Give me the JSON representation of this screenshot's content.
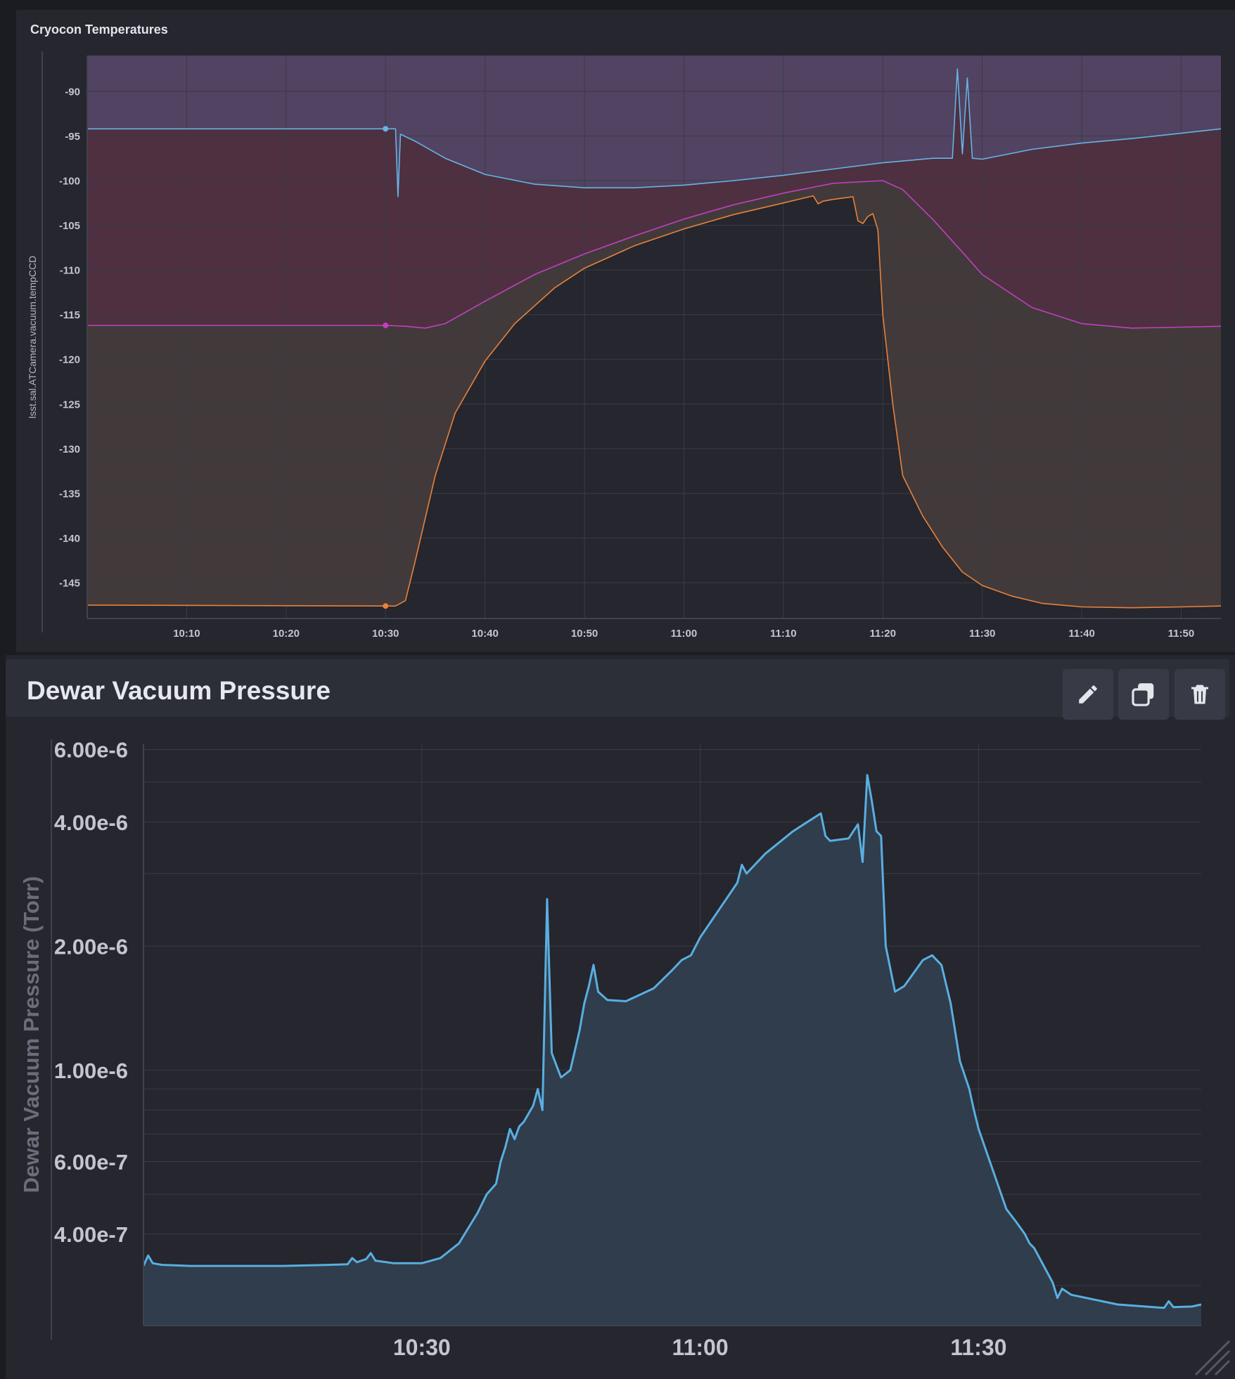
{
  "panels": {
    "top": {
      "title": "Cryocon Temperatures"
    },
    "bottom": {
      "title": "Dewar Vacuum Pressure",
      "toolbar": {
        "edit_icon": "pencil-icon",
        "duplicate_icon": "copy-icon",
        "delete_icon": "trash-icon"
      }
    }
  },
  "chart_data": [
    {
      "type": "area",
      "title": "Cryocon Temperatures",
      "ylabel": "lsst.sal.ATCamera.vacuum.tempCCD",
      "xlabel": "",
      "x_unit": "time (HH:MM)",
      "xlim": [
        "10:00",
        "11:54"
      ],
      "ylim": [
        -149,
        -86
      ],
      "y_ticks": [
        -90,
        -95,
        -100,
        -105,
        -110,
        -115,
        -120,
        -125,
        -130,
        -135,
        -140,
        -145
      ],
      "x_ticks": [
        "10:10",
        "10:20",
        "10:30",
        "10:40",
        "10:50",
        "11:00",
        "11:10",
        "11:20",
        "11:30",
        "11:40",
        "11:50"
      ],
      "grid": true,
      "series": [
        {
          "color": "#66b3e6",
          "fill": "#514361",
          "x": [
            "10:00",
            "10:30",
            "10:31",
            "10:31:15",
            "10:31:30",
            "10:33",
            "10:36",
            "10:40",
            "10:45",
            "10:50",
            "10:55",
            "11:00",
            "11:05",
            "11:10",
            "11:15",
            "11:20",
            "11:25",
            "11:27",
            "11:27:30",
            "11:28",
            "11:28:30",
            "11:29",
            "11:30",
            "11:35",
            "11:40",
            "11:45",
            "11:50",
            "11:54"
          ],
          "values": [
            -94.2,
            -94.2,
            -94.2,
            -101.8,
            -94.8,
            -95.6,
            -97.5,
            -99.3,
            -100.4,
            -100.8,
            -100.8,
            -100.5,
            -100.0,
            -99.4,
            -98.7,
            -98.0,
            -97.5,
            -97.5,
            -87.5,
            -97.0,
            -88.5,
            -97.5,
            -97.6,
            -96.5,
            -95.8,
            -95.3,
            -94.7,
            -94.2
          ]
        },
        {
          "color": "#c040c0",
          "fill": "#4e3040",
          "x": [
            "10:00",
            "10:30",
            "10:32",
            "10:34",
            "10:36",
            "10:40",
            "10:45",
            "10:50",
            "10:55",
            "11:00",
            "11:05",
            "11:10",
            "11:15",
            "11:20",
            "11:22",
            "11:25",
            "11:28",
            "11:30",
            "11:35",
            "11:40",
            "11:45",
            "11:50",
            "11:54"
          ],
          "values": [
            -116.2,
            -116.2,
            -116.3,
            -116.5,
            -116.0,
            -113.5,
            -110.5,
            -108.2,
            -106.2,
            -104.3,
            -102.7,
            -101.4,
            -100.3,
            -100.0,
            -101.0,
            -104.3,
            -108.0,
            -110.5,
            -114.2,
            -116.0,
            -116.5,
            -116.4,
            -116.3
          ]
        },
        {
          "color": "#e8813a",
          "fill": "#423a3a",
          "x": [
            "10:00",
            "10:30",
            "10:31",
            "10:32",
            "10:33",
            "10:35",
            "10:37",
            "10:40",
            "10:43",
            "10:47",
            "10:50",
            "10:55",
            "11:00",
            "11:05",
            "11:10",
            "11:13",
            "11:13:30",
            "11:14",
            "11:15",
            "11:17",
            "11:17:30",
            "11:18",
            "11:18:30",
            "11:19",
            "11:19:30",
            "11:20",
            "11:21",
            "11:22",
            "11:24",
            "11:26",
            "11:28",
            "11:30",
            "11:33",
            "11:36",
            "11:40",
            "11:45",
            "11:50",
            "11:54"
          ],
          "values": [
            -147.5,
            -147.6,
            -147.6,
            -147.0,
            -142.5,
            -133.0,
            -126.0,
            -120.2,
            -116.0,
            -112.0,
            -109.8,
            -107.3,
            -105.4,
            -103.8,
            -102.5,
            -101.7,
            -102.6,
            -102.3,
            -102.1,
            -101.8,
            -104.5,
            -104.8,
            -104.0,
            -103.7,
            -105.5,
            -115.0,
            -125.0,
            -133.0,
            -137.5,
            -141.0,
            -143.8,
            -145.3,
            -146.5,
            -147.3,
            -147.7,
            -147.8,
            -147.7,
            -147.6
          ]
        }
      ],
      "markers": [
        {
          "x": "10:30",
          "y": -94.2,
          "color": "#66b3e6"
        },
        {
          "x": "10:30",
          "y": -116.2,
          "color": "#c040c0"
        },
        {
          "x": "10:30",
          "y": -147.6,
          "color": "#e8813a"
        }
      ]
    },
    {
      "type": "area",
      "title": "Dewar Vacuum Pressure",
      "ylabel": "Dewar Vacuum Pressure (Torr)",
      "xlabel": "",
      "x_unit": "time (HH:MM)",
      "xlim": [
        "10:00",
        "11:54"
      ],
      "ylim": [
        2.4e-07,
        6.2e-06
      ],
      "y_scale": "log",
      "y_ticks": [
        6e-06,
        4e-06,
        2e-06,
        1e-06,
        6e-07,
        4e-07
      ],
      "y_tick_labels": [
        "6.00e-6",
        "4.00e-6",
        "2.00e-6",
        "1.00e-6",
        "6.00e-7",
        "4.00e-7"
      ],
      "x_ticks": [
        "10:30",
        "11:00",
        "11:30"
      ],
      "grid": true,
      "series": [
        {
          "color": "#5aaee0",
          "fill": "#2f3d4c",
          "x": [
            "10:00",
            "10:00:30",
            "10:01",
            "10:02",
            "10:05",
            "10:10",
            "10:15",
            "10:20",
            "10:22",
            "10:22:30",
            "10:23",
            "10:24",
            "10:24:30",
            "10:25",
            "10:27",
            "10:30",
            "10:32",
            "10:34",
            "10:36",
            "10:37",
            "10:38",
            "10:38:30",
            "10:39",
            "10:39:30",
            "10:40",
            "10:40:30",
            "10:41",
            "10:42",
            "10:42:30",
            "10:43",
            "10:43:30",
            "10:44",
            "10:45",
            "10:46",
            "10:47",
            "10:47:30",
            "10:48",
            "10:48:30",
            "10:49",
            "10:50",
            "10:52",
            "10:55",
            "10:57",
            "10:58",
            "10:59",
            "11:00",
            "11:04",
            "11:04:30",
            "11:05",
            "11:07",
            "11:10",
            "11:13",
            "11:13:30",
            "11:14",
            "11:16",
            "11:16:30",
            "11:17",
            "11:17:30",
            "11:18",
            "11:18:30",
            "11:19",
            "11:19:30",
            "11:20",
            "11:21",
            "11:22",
            "11:24",
            "11:25",
            "11:26",
            "11:27",
            "11:28",
            "11:29",
            "11:29:30",
            "11:30",
            "11:33",
            "11:34",
            "11:35",
            "11:35:30",
            "11:36",
            "11:38",
            "11:38:30",
            "11:39",
            "11:40",
            "11:45",
            "11:50",
            "11:50:30",
            "11:51",
            "11:53",
            "11:54"
          ],
          "values": [
            3.35e-07,
            3.55e-07,
            3.4e-07,
            3.37e-07,
            3.35e-07,
            3.35e-07,
            3.35e-07,
            3.37e-07,
            3.38e-07,
            3.5e-07,
            3.42e-07,
            3.48e-07,
            3.6e-07,
            3.45e-07,
            3.4e-07,
            3.4e-07,
            3.5e-07,
            3.8e-07,
            4.5e-07,
            5e-07,
            5.3e-07,
            6e-07,
            6.5e-07,
            7.2e-07,
            6.8e-07,
            7.3e-07,
            7.5e-07,
            8.2e-07,
            9e-07,
            8e-07,
            2.6e-06,
            1.1e-06,
            9.6e-07,
            1e-06,
            1.25e-06,
            1.45e-06,
            1.6e-06,
            1.8e-06,
            1.55e-06,
            1.48e-06,
            1.47e-06,
            1.58e-06,
            1.75e-06,
            1.85e-06,
            1.9e-06,
            2.1e-06,
            2.85e-06,
            3.15e-06,
            3e-06,
            3.35e-06,
            3.8e-06,
            4.2e-06,
            3.7e-06,
            3.6e-06,
            3.65e-06,
            3.8e-06,
            3.95e-06,
            3.2e-06,
            5.2e-06,
            4.5e-06,
            3.8e-06,
            3.7e-06,
            2e-06,
            1.55e-06,
            1.6e-06,
            1.85e-06,
            1.9e-06,
            1.8e-06,
            1.45e-06,
            1.05e-06,
            9e-07,
            8e-07,
            7.2e-07,
            4.6e-07,
            4.3e-07,
            4e-07,
            3.8e-07,
            3.7e-07,
            3.05e-07,
            2.8e-07,
            2.95e-07,
            2.85e-07,
            2.7e-07,
            2.65e-07,
            2.75e-07,
            2.66e-07,
            2.67e-07,
            2.7e-07
          ]
        }
      ]
    }
  ]
}
